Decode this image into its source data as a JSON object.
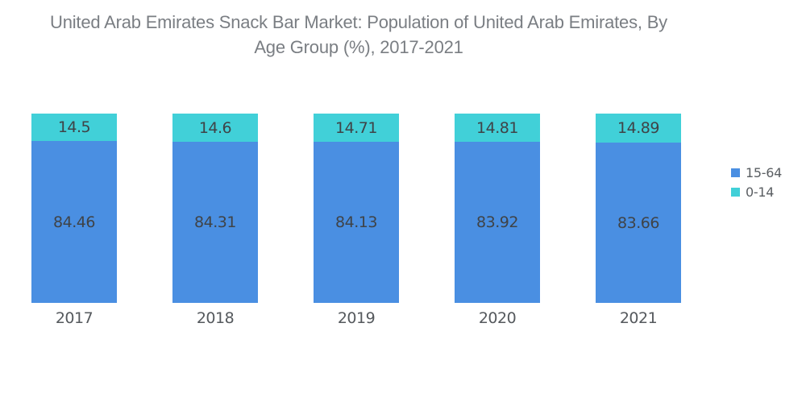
{
  "header": {
    "title": "United Arab Emirates Snack Bar Market: Population of United Arab Emirates, By Age Group (%), 2017-2021",
    "title_lines": [
      "United Arab Emirates Snack Bar Market: Population of United Arab Emirates, By",
      "Age Group (%), 2017-2021"
    ]
  },
  "chart_data": {
    "type": "bar",
    "stacked": true,
    "normalized_to_full_height": true,
    "title": "United Arab Emirates Snack Bar Market: Population of United Arab Emirates, By Age Group (%), 2017-2021",
    "categories": [
      "2017",
      "2018",
      "2019",
      "2020",
      "2021"
    ],
    "series": [
      {
        "name": "15-64",
        "color": "#4a8fe2",
        "values": [
          84.46,
          84.31,
          84.13,
          83.92,
          83.66
        ]
      },
      {
        "name": "0-14",
        "color": "#41d0d8",
        "values": [
          14.5,
          14.6,
          14.71,
          14.81,
          14.89
        ]
      }
    ],
    "xlabel": "",
    "ylabel": "",
    "grid": false,
    "axes_visible": false,
    "data_labels": "inside-center",
    "legend_position": "right"
  }
}
